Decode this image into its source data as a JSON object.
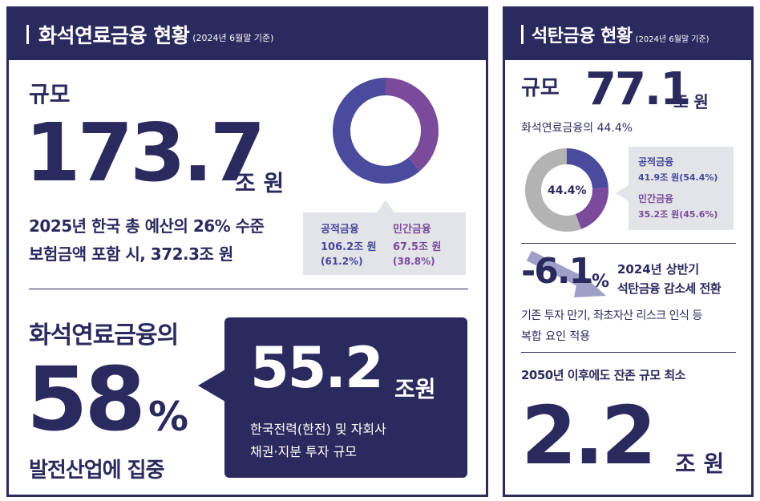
{
  "fossil": {
    "title": "화석연료금융 현황",
    "subtitle": "(2024년 6월말 기준)",
    "scale_label": "규모",
    "amount": "173.7",
    "amount_unit": "조 원",
    "note_line1": "2025년 한국 총 예산의 26% 수준",
    "note_line2": "보험금액 포함 시, 372.3조 원",
    "donut": {
      "public_label": "공적금융",
      "public_amount": "106.2조 원",
      "public_pct": "(61.2%)",
      "private_label": "민간금융",
      "private_amount": "67.5조 원",
      "private_pct": "(38.8%)",
      "public_share": 61.2,
      "private_share": 38.8,
      "public_color": "#4b4b9e",
      "private_color": "#7a4a9b"
    },
    "share_heading": "화석연료금융의",
    "share_value": "58",
    "share_unit": "%",
    "share_footer": "발전산업에 집중",
    "callout_amount": "55.2",
    "callout_unit": "조원",
    "callout_line1": "한국전력(한전) 및 자회사",
    "callout_line2": "채권·지분 투자 규모"
  },
  "coal": {
    "title": "석탄금융 현황",
    "subtitle": "(2024년 6월말 기준)",
    "scale_label": "규모",
    "amount": "77.1",
    "amount_unit": "조 원",
    "share_of_fossil": "화석연료금융의 44.4%",
    "donut": {
      "center_label": "44.4%",
      "share": 44.4,
      "public_label": "공적금융",
      "public_detail": "41.9조 원(54.4%)",
      "private_label": "민간금융",
      "private_detail": "35.2조 원(45.6%)",
      "public_share": 54.4,
      "private_share": 45.6,
      "public_color": "#4b4b9e",
      "private_color": "#7a4a9b",
      "rest_color": "#b3b3b3"
    },
    "change_value": "-6.1",
    "change_unit": "%",
    "change_line1": "2024년 상반기",
    "change_line2": "석탄금융 감소세 전환",
    "change_note1": "기존 투자 만기, 좌초자산 리스크 인식 등",
    "change_note2": "복합 요인 적용",
    "min_heading": "2050년 이후에도 잔존 규모 최소",
    "min_value": "2.2",
    "min_unit": "조 원"
  },
  "colors": {
    "navy": "#2b2a5e",
    "purple": "#7a4a9b",
    "blue": "#4b4b9e",
    "gray": "#b3b3b3",
    "legend_bg": "#e3e4e8"
  }
}
